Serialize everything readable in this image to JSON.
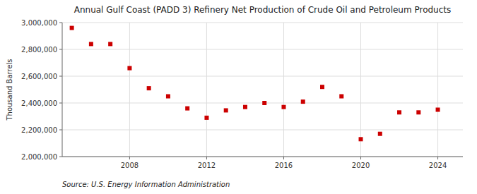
{
  "chart_data": {
    "type": "scatter",
    "title": "Annual Gulf Coast (PADD 3) Refinery Net Production of Crude Oil and Petroleum Products",
    "ylabel": "Thousand Barrels",
    "source": "Source: U.S. Energy Information Administration",
    "x": [
      2005,
      2006,
      2007,
      2008,
      2009,
      2010,
      2011,
      2012,
      2013,
      2014,
      2015,
      2016,
      2017,
      2018,
      2019,
      2020,
      2021,
      2022,
      2023,
      2024
    ],
    "values": [
      2960000,
      2840000,
      2840000,
      2660000,
      2510000,
      2450000,
      2360000,
      2290000,
      2345000,
      2370000,
      2400000,
      2370000,
      2410000,
      2520000,
      2450000,
      2130000,
      2170000,
      2330000,
      2330000,
      2350000
    ],
    "color": "#cc0000",
    "marker": "square",
    "grid": true,
    "xlim": [
      2004.5,
      2025.3
    ],
    "xticks": [
      2008,
      2012,
      2016,
      2020,
      2024
    ],
    "ylim": [
      2000000,
      3000000
    ],
    "yticks": [
      {
        "value": 2000000,
        "label": "2,000,000"
      },
      {
        "value": 2200000,
        "label": "2,200,000"
      },
      {
        "value": 2400000,
        "label": "2,400,000"
      },
      {
        "value": 2600000,
        "label": "2,600,000"
      },
      {
        "value": 2800000,
        "label": "2,800,000"
      },
      {
        "value": 3000000,
        "label": "3,000,000"
      }
    ]
  }
}
